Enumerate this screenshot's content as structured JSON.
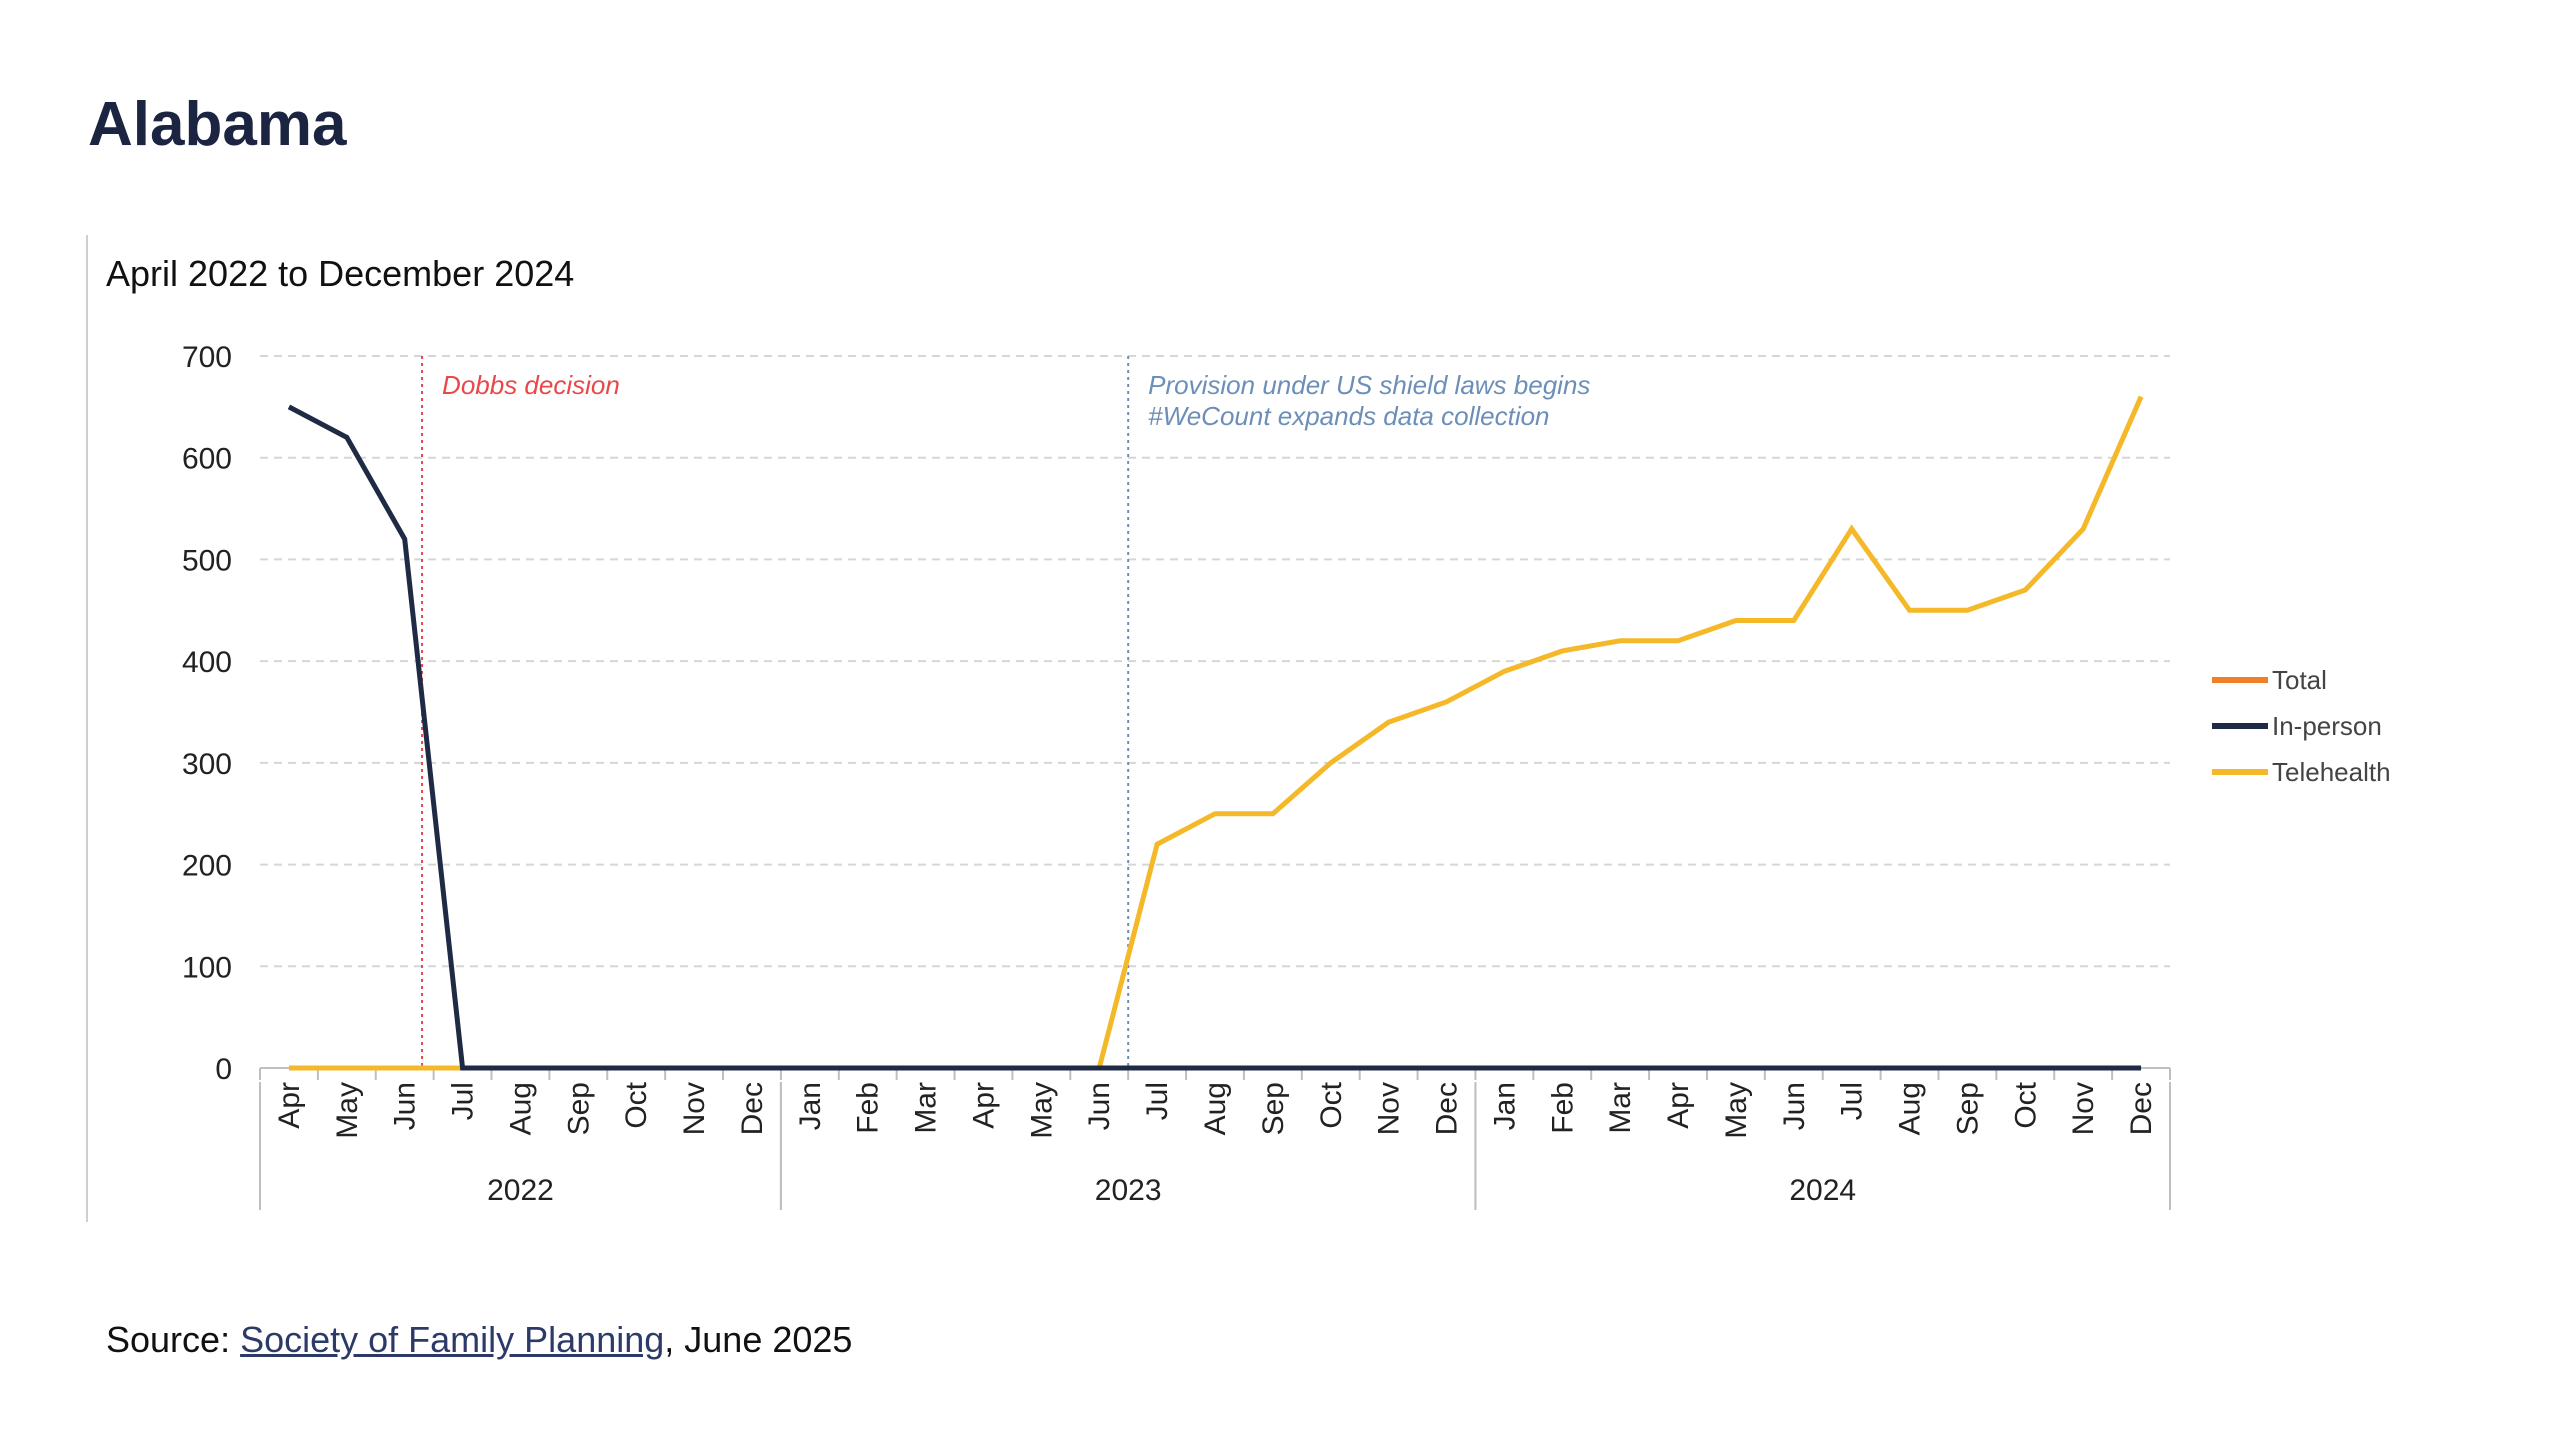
{
  "page": {
    "title": "Alabama"
  },
  "footer": {
    "prefix": "Source: ",
    "link_text": "Society of Family Planning",
    "suffix": ", June 2025"
  },
  "chart_data": {
    "type": "line",
    "subtitle": "April 2022 to December 2024",
    "categories": [
      "Apr",
      "May",
      "Jun",
      "Jul",
      "Aug",
      "Sep",
      "Oct",
      "Nov",
      "Dec",
      "Jan",
      "Feb",
      "Mar",
      "Apr",
      "May",
      "Jun",
      "Jul",
      "Aug",
      "Sep",
      "Oct",
      "Nov",
      "Dec",
      "Jan",
      "Feb",
      "Mar",
      "Apr",
      "May",
      "Jun",
      "Jul",
      "Aug",
      "Sep",
      "Oct",
      "Nov",
      "Dec"
    ],
    "years": [
      {
        "label": "2022",
        "start": 0,
        "end": 8
      },
      {
        "label": "2023",
        "start": 9,
        "end": 20
      },
      {
        "label": "2024",
        "start": 21,
        "end": 32
      }
    ],
    "ylim": [
      0,
      700
    ],
    "yticks": [
      0,
      100,
      200,
      300,
      400,
      500,
      600,
      700
    ],
    "grid": true,
    "legend_position": "right",
    "colors": {
      "total": "#f07f2a",
      "in_person": "#1f2a44",
      "telehealth": "#f5b828",
      "dobbs": "#e8484a",
      "shield": "#6b8fb8",
      "grid": "#d6d6d6",
      "axis": "#bfbfbf"
    },
    "series": [
      {
        "key": "total",
        "name": "Total",
        "values": null
      },
      {
        "key": "in_person",
        "name": "In-person",
        "values": [
          650,
          620,
          520,
          0,
          0,
          0,
          0,
          0,
          0,
          0,
          0,
          0,
          0,
          0,
          0,
          0,
          0,
          0,
          0,
          0,
          0,
          0,
          0,
          0,
          0,
          0,
          0,
          0,
          0,
          0,
          0,
          0,
          0
        ]
      },
      {
        "key": "telehealth",
        "name": "Telehealth",
        "values": [
          0,
          0,
          0,
          0,
          0,
          0,
          0,
          0,
          0,
          0,
          0,
          0,
          0,
          0,
          0,
          220,
          250,
          250,
          300,
          340,
          360,
          390,
          410,
          420,
          420,
          440,
          440,
          530,
          450,
          450,
          470,
          530,
          660
        ]
      }
    ],
    "annotations": [
      {
        "key": "dobbs",
        "position": 2.3,
        "lines": [
          "Dobbs decision"
        ]
      },
      {
        "key": "shield",
        "position": 14.5,
        "lines": [
          "Provision under US shield laws begins",
          "#WeCount expands data collection"
        ]
      }
    ]
  }
}
